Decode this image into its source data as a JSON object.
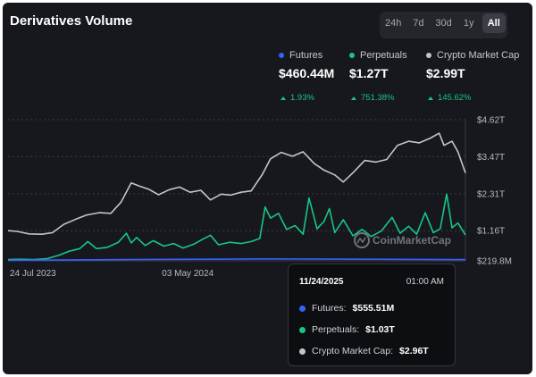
{
  "title": "Derivatives Volume",
  "ranges": [
    {
      "label": "24h",
      "active": false
    },
    {
      "label": "7d",
      "active": false
    },
    {
      "label": "30d",
      "active": false
    },
    {
      "label": "1y",
      "active": false
    },
    {
      "label": "All",
      "active": true
    }
  ],
  "legend": [
    {
      "name": "Futures",
      "value": "$460.44M",
      "change": "1.93%",
      "color": "#3861fb"
    },
    {
      "name": "Perpetuals",
      "value": "$1.27T",
      "change": "751.38%",
      "color": "#16c784"
    },
    {
      "name": "Crypto Market Cap",
      "value": "$2.99T",
      "change": "145.62%",
      "color": "#c3c5ca"
    }
  ],
  "watermark": "CoinMarketCap",
  "tooltip": {
    "date": "11/24/2025",
    "time": "01:00 AM",
    "rows": [
      {
        "label": "Futures:",
        "value": "$555.51M",
        "color": "#3861fb"
      },
      {
        "label": "Perpetuals:",
        "value": "$1.03T",
        "color": "#16c784"
      },
      {
        "label": "Crypto Market Cap:",
        "value": "$2.96T",
        "color": "#c3c5ca"
      }
    ]
  },
  "chart_data": {
    "type": "line",
    "title": "Derivatives Volume",
    "xlabel": "",
    "ylabel": "",
    "x_range": [
      "2023-07-24",
      "2025-11-24"
    ],
    "x_ticks": [
      {
        "label": "24 Jul 2023",
        "date": "2023-07-24"
      },
      {
        "label": "03 May 2024",
        "date": "2024-05-03"
      }
    ],
    "y_ticks": [
      "$219.8M",
      "$1.16T",
      "$2.31T",
      "$3.47T",
      "$4.62T"
    ],
    "y_tick_values": [
      0.2198,
      1.16,
      2.31,
      3.47,
      4.62
    ],
    "ylim": [
      0.2198,
      4.62
    ],
    "y_unit": "T",
    "grid": "horizontal dashed",
    "legend_position": "top-right",
    "series": [
      {
        "name": "Crypto Market Cap",
        "color": "#c3c5ca",
        "points": [
          [
            "2023-07-24",
            1.16
          ],
          [
            "2023-08-10",
            1.14
          ],
          [
            "2023-09-01",
            1.06
          ],
          [
            "2023-09-25",
            1.05
          ],
          [
            "2023-10-15",
            1.1
          ],
          [
            "2023-11-05",
            1.36
          ],
          [
            "2023-11-28",
            1.52
          ],
          [
            "2023-12-18",
            1.65
          ],
          [
            "2024-01-10",
            1.72
          ],
          [
            "2024-02-01",
            1.7
          ],
          [
            "2024-02-20",
            2.05
          ],
          [
            "2024-03-10",
            2.65
          ],
          [
            "2024-03-25",
            2.55
          ],
          [
            "2024-04-12",
            2.45
          ],
          [
            "2024-04-30",
            2.28
          ],
          [
            "2024-05-20",
            2.44
          ],
          [
            "2024-06-08",
            2.52
          ],
          [
            "2024-06-28",
            2.36
          ],
          [
            "2024-07-18",
            2.42
          ],
          [
            "2024-08-05",
            2.12
          ],
          [
            "2024-08-25",
            2.3
          ],
          [
            "2024-09-12",
            2.27
          ],
          [
            "2024-10-01",
            2.36
          ],
          [
            "2024-10-20",
            2.4
          ],
          [
            "2024-11-10",
            2.92
          ],
          [
            "2024-11-25",
            3.4
          ],
          [
            "2024-12-15",
            3.6
          ],
          [
            "2025-01-05",
            3.48
          ],
          [
            "2025-01-25",
            3.62
          ],
          [
            "2025-02-15",
            3.25
          ],
          [
            "2025-03-05",
            3.05
          ],
          [
            "2025-03-25",
            2.9
          ],
          [
            "2025-04-10",
            2.68
          ],
          [
            "2025-04-30",
            3.0
          ],
          [
            "2025-05-20",
            3.35
          ],
          [
            "2025-06-10",
            3.3
          ],
          [
            "2025-06-30",
            3.38
          ],
          [
            "2025-07-20",
            3.82
          ],
          [
            "2025-08-10",
            3.95
          ],
          [
            "2025-08-30",
            3.9
          ],
          [
            "2025-09-20",
            4.05
          ],
          [
            "2025-10-06",
            4.2
          ],
          [
            "2025-10-15",
            3.82
          ],
          [
            "2025-10-30",
            3.95
          ],
          [
            "2025-11-10",
            3.62
          ],
          [
            "2025-11-24",
            2.96
          ]
        ]
      },
      {
        "name": "Perpetuals",
        "color": "#16c784",
        "points": [
          [
            "2023-07-24",
            0.26
          ],
          [
            "2023-08-15",
            0.27
          ],
          [
            "2023-09-10",
            0.26
          ],
          [
            "2023-10-05",
            0.29
          ],
          [
            "2023-10-28",
            0.4
          ],
          [
            "2023-11-15",
            0.52
          ],
          [
            "2023-12-05",
            0.6
          ],
          [
            "2023-12-20",
            0.82
          ],
          [
            "2024-01-05",
            0.6
          ],
          [
            "2024-01-25",
            0.64
          ],
          [
            "2024-02-15",
            0.8
          ],
          [
            "2024-03-01",
            1.08
          ],
          [
            "2024-03-10",
            0.78
          ],
          [
            "2024-03-20",
            0.95
          ],
          [
            "2024-04-05",
            0.7
          ],
          [
            "2024-04-20",
            0.85
          ],
          [
            "2024-05-10",
            0.68
          ],
          [
            "2024-05-28",
            0.76
          ],
          [
            "2024-06-15",
            0.62
          ],
          [
            "2024-07-05",
            0.74
          ],
          [
            "2024-07-20",
            0.88
          ],
          [
            "2024-08-05",
            1.02
          ],
          [
            "2024-08-20",
            0.72
          ],
          [
            "2024-09-10",
            0.8
          ],
          [
            "2024-10-01",
            0.76
          ],
          [
            "2024-10-20",
            0.82
          ],
          [
            "2024-11-05",
            0.92
          ],
          [
            "2024-11-15",
            1.9
          ],
          [
            "2024-11-25",
            1.55
          ],
          [
            "2024-12-10",
            1.7
          ],
          [
            "2024-12-25",
            1.2
          ],
          [
            "2025-01-10",
            1.32
          ],
          [
            "2025-01-25",
            1.05
          ],
          [
            "2025-02-05",
            2.18
          ],
          [
            "2025-02-20",
            1.22
          ],
          [
            "2025-03-05",
            1.45
          ],
          [
            "2025-03-15",
            1.85
          ],
          [
            "2025-03-25",
            1.1
          ],
          [
            "2025-04-10",
            1.5
          ],
          [
            "2025-04-28",
            1.0
          ],
          [
            "2025-05-15",
            1.2
          ],
          [
            "2025-06-01",
            0.98
          ],
          [
            "2025-06-20",
            1.15
          ],
          [
            "2025-07-10",
            1.58
          ],
          [
            "2025-07-25",
            1.08
          ],
          [
            "2025-08-10",
            1.3
          ],
          [
            "2025-08-25",
            1.05
          ],
          [
            "2025-09-10",
            1.72
          ],
          [
            "2025-09-25",
            1.1
          ],
          [
            "2025-10-08",
            1.22
          ],
          [
            "2025-10-20",
            2.3
          ],
          [
            "2025-10-30",
            1.25
          ],
          [
            "2025-11-10",
            1.4
          ],
          [
            "2025-11-24",
            1.03
          ]
        ]
      },
      {
        "name": "Futures",
        "color": "#3861fb",
        "points": [
          [
            "2023-07-24",
            0.24
          ],
          [
            "2024-03-01",
            0.26
          ],
          [
            "2024-11-15",
            0.28
          ],
          [
            "2025-06-01",
            0.27
          ],
          [
            "2025-11-24",
            0.26
          ]
        ]
      }
    ]
  }
}
